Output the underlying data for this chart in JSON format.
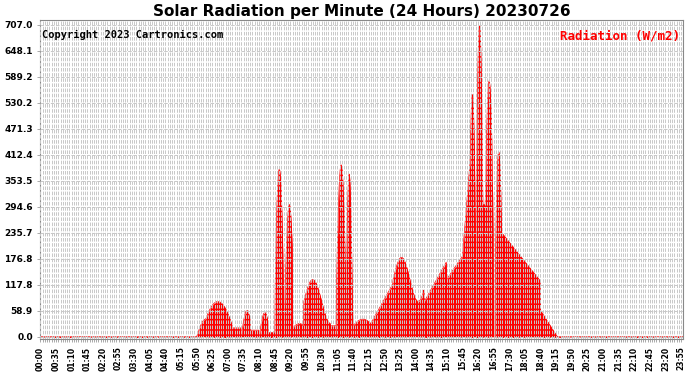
{
  "title": "Solar Radiation per Minute (24 Hours) 20230726",
  "ylabel": "Radiation (W/m2)",
  "copyright": "Copyright 2023 Cartronics.com",
  "bg_color": "#ffffff",
  "fill_color": "#ff0000",
  "line_color": "#ff0000",
  "zero_line_color": "#ff0000",
  "grid_color": "#c8c8c8",
  "ylabel_color": "#ff0000",
  "ymax": 707.0,
  "yticks": [
    0.0,
    58.9,
    117.8,
    176.8,
    235.7,
    294.6,
    353.5,
    412.4,
    471.3,
    530.2,
    589.2,
    648.1,
    707.0
  ],
  "title_fontsize": 11,
  "ylabel_fontsize": 9,
  "copyright_fontsize": 7.5
}
